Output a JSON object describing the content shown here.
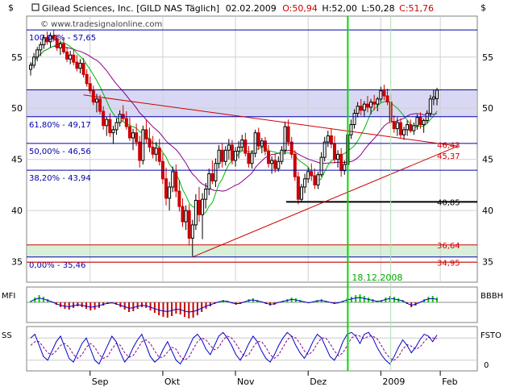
{
  "header": {
    "symbol_name": "Gilead Sciences, Inc. [GILD NAS  Täglich]",
    "date": "02.02.2009",
    "open": "O:50,94",
    "high": "H:52,00",
    "low": "L:50,28",
    "close": "C:51,76",
    "watermark": "© www.tradesignalonline.com",
    "axis_unit_left": "$",
    "axis_unit_right": "$"
  },
  "panels": {
    "mfi_label": "MFI",
    "mfi_right_label": "BBBH",
    "sto_label": "SS",
    "sto_right_label": "FSTO",
    "sto_zero_label": "0"
  },
  "colors": {
    "up": "#000000",
    "down": "#cc0000",
    "ma_fast": "#00bb00",
    "ma_slow": "#880088",
    "fib_line": "#0000aa",
    "fib_text": "#0000aa",
    "price_text": "#cc0000",
    "trend": "#cc0000",
    "marker": "#00dd00",
    "band_blue": "#d8d8f4",
    "band_green": "#d8f0d8"
  },
  "chart_data": {
    "type": "candlestick",
    "ylim": [
      33,
      59
    ],
    "y_ticks": [
      35,
      40,
      45,
      50,
      55
    ],
    "x_months": [
      "Sep",
      "Okt",
      "Nov",
      "Dez",
      "2009",
      "Feb"
    ],
    "candles": [
      [
        53.8,
        54.5,
        53.2,
        54.2
      ],
      [
        54.2,
        55.4,
        53.9,
        55.0
      ],
      [
        55.0,
        56.0,
        54.6,
        55.7
      ],
      [
        55.7,
        56.5,
        55.1,
        56.2
      ],
      [
        56.2,
        57.2,
        55.8,
        56.9
      ],
      [
        56.9,
        57.5,
        56.2,
        56.5
      ],
      [
        56.5,
        57.4,
        55.9,
        57.1
      ],
      [
        57.1,
        57.65,
        56.5,
        56.8
      ],
      [
        56.8,
        57.2,
        55.6,
        55.9
      ],
      [
        55.9,
        56.6,
        55.2,
        56.3
      ],
      [
        56.3,
        56.9,
        55.3,
        55.5
      ],
      [
        55.5,
        56.0,
        54.5,
        54.8
      ],
      [
        54.8,
        55.6,
        54.3,
        55.2
      ],
      [
        55.2,
        55.8,
        54.2,
        54.5
      ],
      [
        54.5,
        55.2,
        53.6,
        53.9
      ],
      [
        53.9,
        54.8,
        53.4,
        54.4
      ],
      [
        54.4,
        54.9,
        53.0,
        53.3
      ],
      [
        53.3,
        53.8,
        52.1,
        52.4
      ],
      [
        52.4,
        53.1,
        51.4,
        51.7
      ],
      [
        51.7,
        52.2,
        50.3,
        50.6
      ],
      [
        50.6,
        51.4,
        49.6,
        50.9
      ],
      [
        50.9,
        51.3,
        49.4,
        49.7
      ],
      [
        49.7,
        50.2,
        47.9,
        48.3
      ],
      [
        48.3,
        49.2,
        47.3,
        48.9
      ],
      [
        48.9,
        49.5,
        47.2,
        47.6
      ],
      [
        47.6,
        48.3,
        46.5,
        47.9
      ],
      [
        47.9,
        49.0,
        47.4,
        48.6
      ],
      [
        48.6,
        49.8,
        48.2,
        49.4
      ],
      [
        49.4,
        50.3,
        48.7,
        49.0
      ],
      [
        49.0,
        49.7,
        47.9,
        48.2
      ],
      [
        48.2,
        49.1,
        46.8,
        47.1
      ],
      [
        47.1,
        48.0,
        45.9,
        47.6
      ],
      [
        47.6,
        48.5,
        46.3,
        46.7
      ],
      [
        46.7,
        47.3,
        44.2,
        44.9
      ],
      [
        44.9,
        48.3,
        44.5,
        47.9
      ],
      [
        47.9,
        48.9,
        46.6,
        47.0
      ],
      [
        47.0,
        48.1,
        45.7,
        46.2
      ],
      [
        46.2,
        47.3,
        45.1,
        45.5
      ],
      [
        45.5,
        46.7,
        44.8,
        46.1
      ],
      [
        46.1,
        47.0,
        44.4,
        44.8
      ],
      [
        44.8,
        45.6,
        42.6,
        43.1
      ],
      [
        43.1,
        44.2,
        40.5,
        41.2
      ],
      [
        41.2,
        42.8,
        40.0,
        42.3
      ],
      [
        42.3,
        44.3,
        41.8,
        43.8
      ],
      [
        43.8,
        44.5,
        41.3,
        41.9
      ],
      [
        41.9,
        43.0,
        39.9,
        40.4
      ],
      [
        40.4,
        41.2,
        38.4,
        38.9
      ],
      [
        38.9,
        40.5,
        38.1,
        40.0
      ],
      [
        40.0,
        40.6,
        36.6,
        37.3
      ],
      [
        37.3,
        39.1,
        35.46,
        38.6
      ],
      [
        38.6,
        41.6,
        38.1,
        41.0
      ],
      [
        41.0,
        42.3,
        38.9,
        39.6
      ],
      [
        39.6,
        41.7,
        37.2,
        41.1
      ],
      [
        41.1,
        42.7,
        40.2,
        42.1
      ],
      [
        42.1,
        44.1,
        41.5,
        43.6
      ],
      [
        43.6,
        44.9,
        42.6,
        42.9
      ],
      [
        42.9,
        45.1,
        42.3,
        44.6
      ],
      [
        44.6,
        46.4,
        44.1,
        45.9
      ],
      [
        45.9,
        46.6,
        44.2,
        44.8
      ],
      [
        44.8,
        46.3,
        44.4,
        45.9
      ],
      [
        45.9,
        47.0,
        45.0,
        46.4
      ],
      [
        46.4,
        46.9,
        44.5,
        44.9
      ],
      [
        44.9,
        46.2,
        44.3,
        45.8
      ],
      [
        45.8,
        46.8,
        45.1,
        46.2
      ],
      [
        46.2,
        47.4,
        45.8,
        46.9
      ],
      [
        46.9,
        47.6,
        45.3,
        45.6
      ],
      [
        45.6,
        46.3,
        44.2,
        44.6
      ],
      [
        44.6,
        45.9,
        44.1,
        45.6
      ],
      [
        45.6,
        47.9,
        45.2,
        47.6
      ],
      [
        47.6,
        48.1,
        45.9,
        46.3
      ],
      [
        46.3,
        47.1,
        45.6,
        46.8
      ],
      [
        46.8,
        47.2,
        45.4,
        45.8
      ],
      [
        45.8,
        46.4,
        44.2,
        44.6
      ],
      [
        44.6,
        45.3,
        43.6,
        44.9
      ],
      [
        44.9,
        45.6,
        43.7,
        44.1
      ],
      [
        44.1,
        45.3,
        43.8,
        44.8
      ],
      [
        44.8,
        46.3,
        44.5,
        45.9
      ],
      [
        45.9,
        48.7,
        45.5,
        48.2
      ],
      [
        48.2,
        48.9,
        46.3,
        46.7
      ],
      [
        46.7,
        47.2,
        45.1,
        45.5
      ],
      [
        45.5,
        45.9,
        42.9,
        43.3
      ],
      [
        43.3,
        43.8,
        40.6,
        41.1
      ],
      [
        41.1,
        42.6,
        40.9,
        42.3
      ],
      [
        42.3,
        43.6,
        41.7,
        43.1
      ],
      [
        43.1,
        44.2,
        42.7,
        43.8
      ],
      [
        43.8,
        44.6,
        42.9,
        43.4
      ],
      [
        43.4,
        44.1,
        42.1,
        42.5
      ],
      [
        42.5,
        43.8,
        42.1,
        43.5
      ],
      [
        43.5,
        45.7,
        43.3,
        45.2
      ],
      [
        45.2,
        47.2,
        44.8,
        46.7
      ],
      [
        46.7,
        47.8,
        46.2,
        47.3
      ],
      [
        47.3,
        48.0,
        46.1,
        46.5
      ],
      [
        46.5,
        47.3,
        44.6,
        45.0
      ],
      [
        45.0,
        45.9,
        44.2,
        45.5
      ],
      [
        45.5,
        46.1,
        43.3,
        43.9
      ],
      [
        43.9,
        44.9,
        43.5,
        44.5
      ],
      [
        44.5,
        47.9,
        44.3,
        47.4
      ],
      [
        47.4,
        48.9,
        47.0,
        48.4
      ],
      [
        48.4,
        49.9,
        48.0,
        49.5
      ],
      [
        49.5,
        50.6,
        49.1,
        50.2
      ],
      [
        50.2,
        50.9,
        49.3,
        49.8
      ],
      [
        49.8,
        50.7,
        49.2,
        50.4
      ],
      [
        50.4,
        51.2,
        49.6,
        50.1
      ],
      [
        50.1,
        50.9,
        49.4,
        50.6
      ],
      [
        50.6,
        51.3,
        49.8,
        50.4
      ],
      [
        50.4,
        51.1,
        49.7,
        50.9
      ],
      [
        50.9,
        52.1,
        50.6,
        51.7
      ],
      [
        51.7,
        52.3,
        50.8,
        51.2
      ],
      [
        51.2,
        51.9,
        50.3,
        50.6
      ],
      [
        50.6,
        51.3,
        48.4,
        48.7
      ],
      [
        48.7,
        49.3,
        47.6,
        48.0
      ],
      [
        48.0,
        49.1,
        47.3,
        48.6
      ],
      [
        48.6,
        49.0,
        47.1,
        47.4
      ],
      [
        47.4,
        48.2,
        46.9,
        47.9
      ],
      [
        47.9,
        48.8,
        47.3,
        48.4
      ],
      [
        48.4,
        48.9,
        47.6,
        47.8
      ],
      [
        47.8,
        48.6,
        47.4,
        48.3
      ],
      [
        48.3,
        49.4,
        47.9,
        49.1
      ],
      [
        49.1,
        49.6,
        48.0,
        48.4
      ],
      [
        48.4,
        49.0,
        47.6,
        48.8
      ],
      [
        48.8,
        49.8,
        48.5,
        49.5
      ],
      [
        49.5,
        51.3,
        49.2,
        50.9
      ],
      [
        50.9,
        51.8,
        50.3,
        51.1
      ],
      [
        50.94,
        52.0,
        50.28,
        51.76
      ]
    ],
    "fib_levels": [
      {
        "label": "100,00% - 57,65",
        "value": 57.65
      },
      {
        "label": "61,80% - 49,17",
        "value": 49.17
      },
      {
        "label": "50,00% - 46,56",
        "value": 46.56
      },
      {
        "label": "38,20% - 43,94",
        "value": 43.94
      },
      {
        "label": "0,00% - 35,46",
        "value": 35.46
      }
    ],
    "price_labels": [
      {
        "label": "46,43",
        "value": 46.43
      },
      {
        "label": "45,37",
        "value": 45.37
      },
      {
        "label": "40,85",
        "value": 40.85
      },
      {
        "label": "36,64",
        "value": 36.64
      },
      {
        "label": "34,95",
        "value": 34.95
      }
    ],
    "marker_label": "18.12.2008",
    "mfi": [
      0.1,
      0.3,
      0.45,
      0.35,
      0.2,
      0.05,
      -0.15,
      -0.3,
      -0.4,
      -0.45,
      -0.35,
      -0.25,
      -0.3,
      -0.4,
      -0.5,
      -0.45,
      -0.35,
      -0.2,
      -0.1,
      -0.05,
      -0.15,
      -0.3,
      -0.45,
      -0.6,
      -0.55,
      -0.4,
      -0.3,
      -0.35,
      -0.5,
      -0.65,
      -0.8,
      -0.9,
      -0.95,
      -0.85,
      -0.7,
      -0.75,
      -0.9,
      -1.0,
      -0.95,
      -0.8,
      -0.6,
      -0.4,
      -0.25,
      -0.1,
      0.05,
      0.15,
      0.1,
      -0.05,
      -0.15,
      -0.1,
      0.05,
      0.2,
      0.25,
      0.15,
      0.05,
      -0.1,
      -0.2,
      -0.15,
      0.0,
      0.1,
      0.2,
      0.3,
      0.25,
      0.15,
      0.05,
      -0.05,
      0.05,
      0.15,
      0.2,
      0.1,
      0.0,
      -0.1,
      -0.05,
      0.1,
      0.25,
      0.35,
      0.45,
      0.5,
      0.4,
      0.3,
      0.2,
      0.1,
      0.15,
      0.3,
      0.4,
      0.35,
      0.25,
      0.15,
      -0.1,
      -0.3,
      -0.2,
      0.0,
      0.2,
      0.35,
      0.4,
      0.3
    ],
    "sto_fast": [
      80,
      90,
      60,
      30,
      20,
      45,
      70,
      85,
      55,
      25,
      15,
      40,
      65,
      80,
      50,
      20,
      10,
      35,
      60,
      85,
      70,
      40,
      15,
      30,
      55,
      75,
      90,
      60,
      30,
      15,
      25,
      50,
      70,
      45,
      20,
      10,
      30,
      55,
      80,
      90,
      75,
      50,
      35,
      60,
      85,
      95,
      80,
      60,
      35,
      20,
      40,
      65,
      85,
      70,
      45,
      25,
      15,
      35,
      60,
      80,
      95,
      85,
      60,
      40,
      25,
      45,
      70,
      90,
      80,
      55,
      30,
      20,
      40,
      70,
      90,
      95,
      85,
      65,
      90,
      95,
      80,
      55,
      35,
      20,
      10,
      30,
      55,
      75,
      60,
      40,
      55,
      75,
      90,
      85,
      70,
      88
    ],
    "sto_slow": [
      60,
      70,
      70,
      55,
      40,
      35,
      45,
      60,
      65,
      55,
      35,
      25,
      35,
      55,
      65,
      55,
      35,
      25,
      30,
      50,
      65,
      60,
      40,
      28,
      33,
      50,
      70,
      75,
      65,
      45,
      28,
      28,
      42,
      55,
      50,
      30,
      20,
      28,
      50,
      70,
      80,
      75,
      60,
      48,
      55,
      75,
      85,
      80,
      65,
      45,
      30,
      35,
      55,
      70,
      70,
      55,
      35,
      25,
      35,
      55,
      75,
      85,
      80,
      65,
      45,
      35,
      45,
      65,
      80,
      80,
      65,
      45,
      32,
      40,
      60,
      80,
      88,
      85,
      78,
      85,
      85,
      78,
      60,
      40,
      25,
      20,
      30,
      50,
      62,
      58,
      50,
      55,
      70,
      82,
      80,
      78
    ]
  }
}
